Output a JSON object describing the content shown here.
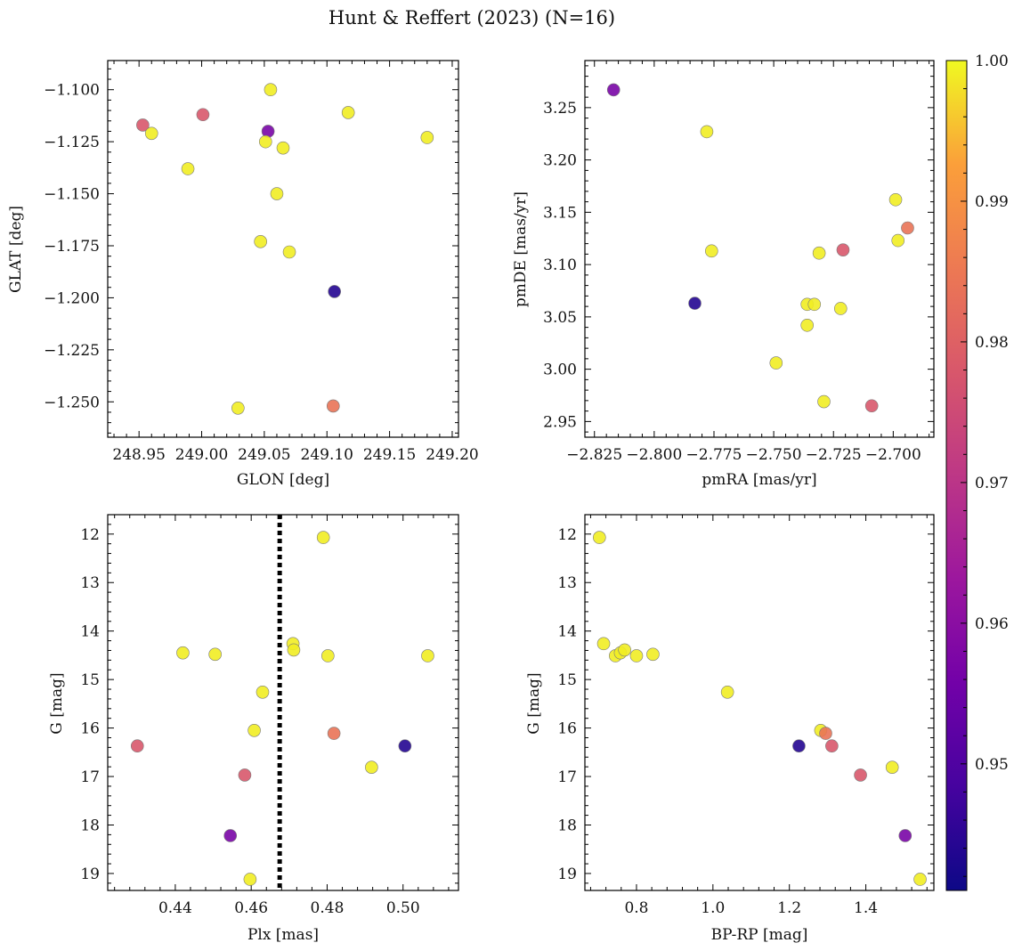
{
  "figure": {
    "title": "Hunt & Reffert (2023) (N=16)"
  },
  "colorbar": {
    "colormap": "plasma",
    "vmin": 0.941,
    "vmax": 1.0,
    "ticks": [
      0.95,
      0.96,
      0.97,
      0.98,
      0.99,
      1.0
    ],
    "tick_labels": [
      "0.95",
      "0.96",
      "0.97",
      "0.98",
      "0.99",
      "1.00"
    ]
  },
  "chart_data": [
    {
      "type": "scatter",
      "name": "glon-glat",
      "xlabel": "GLON [deg]",
      "ylabel": "GLAT [deg]",
      "xlim": [
        248.925,
        249.205
      ],
      "ylim": [
        -1.267,
        -1.086
      ],
      "y_inverted": false,
      "xticks": [
        248.95,
        249.0,
        249.05,
        249.1,
        249.15,
        249.2
      ],
      "xtick_labels": [
        "248.95",
        "249.00",
        "249.05",
        "249.10",
        "249.15",
        "249.20"
      ],
      "yticks": [
        -1.25,
        -1.225,
        -1.2,
        -1.175,
        -1.15,
        -1.125,
        -1.1
      ],
      "ytick_labels": [
        "−1.250",
        "−1.225",
        "−1.200",
        "−1.175",
        "−1.150",
        "−1.125",
        "−1.100"
      ],
      "x": [
        248.953,
        248.96,
        249.001,
        248.989,
        249.053,
        249.055,
        249.051,
        249.065,
        249.06,
        249.047,
        249.07,
        249.117,
        249.18,
        249.106,
        249.029,
        249.105
      ],
      "y": [
        -1.117,
        -1.121,
        -1.112,
        -1.138,
        -1.12,
        -1.1,
        -1.125,
        -1.128,
        -1.15,
        -1.173,
        -1.178,
        -1.111,
        -1.123,
        -1.197,
        -1.253,
        -1.252
      ],
      "c": [
        0.978,
        0.999,
        0.978,
        0.999,
        0.957,
        0.999,
        0.999,
        0.999,
        0.999,
        0.999,
        0.999,
        0.999,
        0.999,
        0.944,
        0.999,
        0.984
      ]
    },
    {
      "type": "scatter",
      "name": "pmra-pmde",
      "xlabel": "pmRA [mas/yr]",
      "ylabel": "pmDE [mas/yr]",
      "xlim": [
        -2.829,
        -2.683
      ],
      "ylim": [
        2.935,
        3.295
      ],
      "y_inverted": false,
      "xticks": [
        -2.825,
        -2.8,
        -2.775,
        -2.75,
        -2.725,
        -2.7
      ],
      "xtick_labels": [
        "−2.825",
        "−2.800",
        "−2.775",
        "−2.750",
        "−2.725",
        "−2.700"
      ],
      "yticks": [
        2.95,
        3.0,
        3.05,
        3.1,
        3.15,
        3.2,
        3.25
      ],
      "ytick_labels": [
        "2.95",
        "3.00",
        "3.05",
        "3.10",
        "3.15",
        "3.20",
        "3.25"
      ],
      "x": [
        -2.817,
        -2.778,
        -2.783,
        -2.776,
        -2.749,
        -2.736,
        -2.733,
        -2.736,
        -2.729,
        -2.731,
        -2.722,
        -2.721,
        -2.709,
        -2.699,
        -2.698,
        -2.694
      ],
      "y": [
        3.267,
        3.227,
        3.063,
        3.113,
        3.006,
        3.062,
        3.062,
        3.042,
        2.969,
        3.111,
        3.058,
        3.114,
        2.965,
        3.162,
        3.123,
        3.135
      ],
      "c": [
        0.957,
        0.999,
        0.944,
        0.999,
        0.999,
        0.999,
        0.999,
        0.999,
        0.999,
        0.999,
        0.999,
        0.978,
        0.978,
        0.999,
        0.999,
        0.984
      ]
    },
    {
      "type": "scatter",
      "name": "plx-g",
      "xlabel": "Plx [mas]",
      "ylabel": "G [mag]",
      "xlim": [
        0.4222,
        0.5146
      ],
      "ylim": [
        19.35,
        11.6
      ],
      "y_inverted": true,
      "xticks": [
        0.44,
        0.46,
        0.48,
        0.5
      ],
      "xtick_labels": [
        "0.44",
        "0.46",
        "0.48",
        "0.50"
      ],
      "yticks": [
        12,
        13,
        14,
        15,
        16,
        17,
        18,
        19
      ],
      "ytick_labels": [
        "12",
        "13",
        "14",
        "15",
        "16",
        "17",
        "18",
        "19"
      ],
      "vline": 0.4675,
      "x": [
        0.43,
        0.442,
        0.4505,
        0.4545,
        0.4583,
        0.4597,
        0.4608,
        0.463,
        0.471,
        0.4712,
        0.479,
        0.4802,
        0.4818,
        0.4917,
        0.5005,
        0.5065
      ],
      "y": [
        16.37,
        14.45,
        14.48,
        18.22,
        16.97,
        19.12,
        16.05,
        15.26,
        14.26,
        14.39,
        12.07,
        14.51,
        16.11,
        16.81,
        16.37,
        14.51
      ],
      "c": [
        0.978,
        0.999,
        0.999,
        0.957,
        0.978,
        0.999,
        0.999,
        0.999,
        0.999,
        0.999,
        0.999,
        0.999,
        0.984,
        0.999,
        0.944,
        0.999
      ]
    },
    {
      "type": "scatter",
      "name": "bprp-g",
      "xlabel": "BP-RP [mag]",
      "ylabel": "G [mag]",
      "xlim": [
        0.665,
        1.578
      ],
      "ylim": [
        19.35,
        11.6
      ],
      "y_inverted": true,
      "xticks": [
        0.8,
        1.0,
        1.2,
        1.4
      ],
      "xtick_labels": [
        "0.8",
        "1.0",
        "1.2",
        "1.4"
      ],
      "yticks": [
        12,
        13,
        14,
        15,
        16,
        17,
        18,
        19
      ],
      "ytick_labels": [
        "12",
        "13",
        "14",
        "15",
        "16",
        "17",
        "18",
        "19"
      ],
      "x": [
        0.703,
        0.714,
        0.745,
        0.758,
        0.769,
        0.8,
        0.843,
        1.038,
        1.225,
        1.282,
        1.295,
        1.311,
        1.386,
        1.469,
        1.503,
        1.542
      ],
      "y": [
        12.07,
        14.26,
        14.51,
        14.45,
        14.39,
        14.51,
        14.48,
        15.26,
        16.37,
        16.05,
        16.11,
        16.37,
        16.97,
        16.81,
        18.22,
        19.12
      ],
      "c": [
        0.999,
        0.999,
        0.999,
        0.999,
        0.999,
        0.999,
        0.999,
        0.999,
        0.944,
        0.999,
        0.984,
        0.978,
        0.978,
        0.999,
        0.957,
        0.999
      ]
    }
  ]
}
